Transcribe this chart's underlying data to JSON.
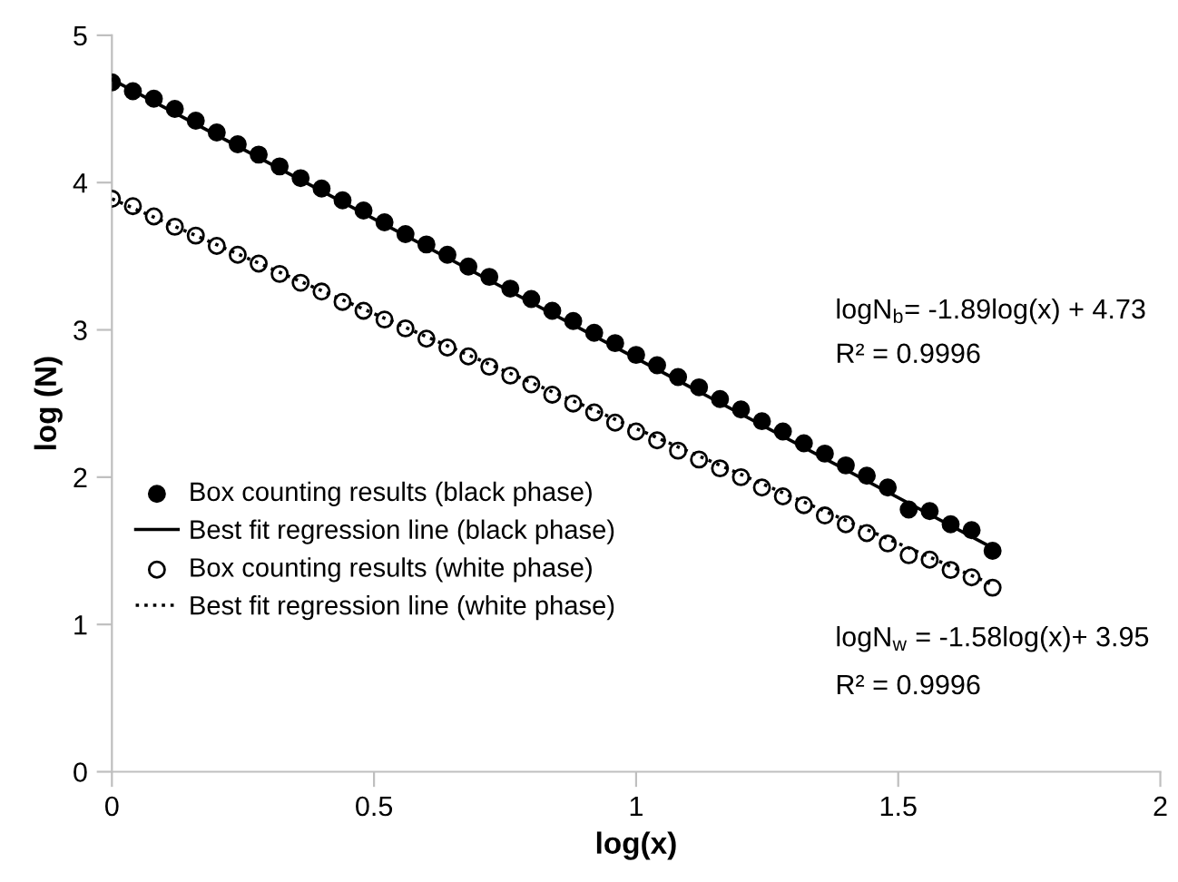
{
  "chart_data": {
    "type": "scatter",
    "xlabel": "log(x)",
    "ylabel": "log (N)",
    "xlim": [
      0,
      2
    ],
    "ylim": [
      0,
      5
    ],
    "xticks": [
      0,
      0.5,
      1,
      1.5,
      2
    ],
    "yticks": [
      0,
      1,
      2,
      3,
      4,
      5
    ],
    "grid": false,
    "legend": "left",
    "series": [
      {
        "name": "Box counting results (black phase)",
        "marker": "circle",
        "color": "#000000",
        "x": [
          0,
          0.04,
          0.08,
          0.12,
          0.16,
          0.2,
          0.24,
          0.28,
          0.32,
          0.36,
          0.4,
          0.44,
          0.48,
          0.52,
          0.56,
          0.6,
          0.64,
          0.68,
          0.72,
          0.76,
          0.8,
          0.84,
          0.88,
          0.92,
          0.96,
          1.0,
          1.04,
          1.08,
          1.12,
          1.16,
          1.2,
          1.24,
          1.28,
          1.32,
          1.36,
          1.4,
          1.44,
          1.48,
          1.52,
          1.56,
          1.6,
          1.64,
          1.68
        ],
        "values": [
          4.68,
          4.62,
          4.57,
          4.5,
          4.42,
          4.34,
          4.26,
          4.19,
          4.11,
          4.03,
          3.96,
          3.88,
          3.81,
          3.73,
          3.65,
          3.58,
          3.51,
          3.43,
          3.36,
          3.28,
          3.21,
          3.13,
          3.06,
          2.98,
          2.91,
          2.83,
          2.76,
          2.68,
          2.61,
          2.53,
          2.46,
          2.38,
          2.31,
          2.23,
          2.16,
          2.08,
          2.01,
          1.93,
          1.78,
          1.77,
          1.68,
          1.64,
          1.5
        ]
      },
      {
        "name": "Best fit regression line (black phase)",
        "type": "line",
        "line_style": "solid",
        "marker": "none",
        "color": "#000000",
        "x": [
          0,
          1.68
        ],
        "values": [
          4.7,
          1.52
        ]
      },
      {
        "name": "Box counting results (white phase)",
        "marker": "circle",
        "color": "#ffffff",
        "x": [
          0,
          0.04,
          0.08,
          0.12,
          0.16,
          0.2,
          0.24,
          0.28,
          0.32,
          0.36,
          0.4,
          0.44,
          0.48,
          0.52,
          0.56,
          0.6,
          0.64,
          0.68,
          0.72,
          0.76,
          0.8,
          0.84,
          0.88,
          0.92,
          0.96,
          1.0,
          1.04,
          1.08,
          1.12,
          1.16,
          1.2,
          1.24,
          1.28,
          1.32,
          1.36,
          1.4,
          1.44,
          1.48,
          1.52,
          1.56,
          1.6,
          1.64,
          1.68
        ],
        "values": [
          3.89,
          3.84,
          3.77,
          3.7,
          3.64,
          3.57,
          3.51,
          3.45,
          3.38,
          3.32,
          3.26,
          3.19,
          3.13,
          3.07,
          3.01,
          2.94,
          2.88,
          2.82,
          2.75,
          2.69,
          2.63,
          2.56,
          2.5,
          2.44,
          2.37,
          2.31,
          2.25,
          2.18,
          2.12,
          2.06,
          2.0,
          1.93,
          1.87,
          1.81,
          1.74,
          1.68,
          1.62,
          1.55,
          1.47,
          1.44,
          1.37,
          1.32,
          1.25
        ]
      },
      {
        "name": "Best fit regression line (white phase)",
        "type": "line",
        "line_style": "dotted",
        "marker": "none",
        "color": "#000000",
        "x": [
          0,
          1.68
        ],
        "values": [
          3.89,
          1.27
        ]
      }
    ],
    "annotations": [
      "logN$_{b}$= -1.89log(x) + 4.73",
      "R² = 0.9996",
      "logN$_{w}$ = -1.58log(x)+ 3.95",
      "R² = 0.9996"
    ]
  }
}
